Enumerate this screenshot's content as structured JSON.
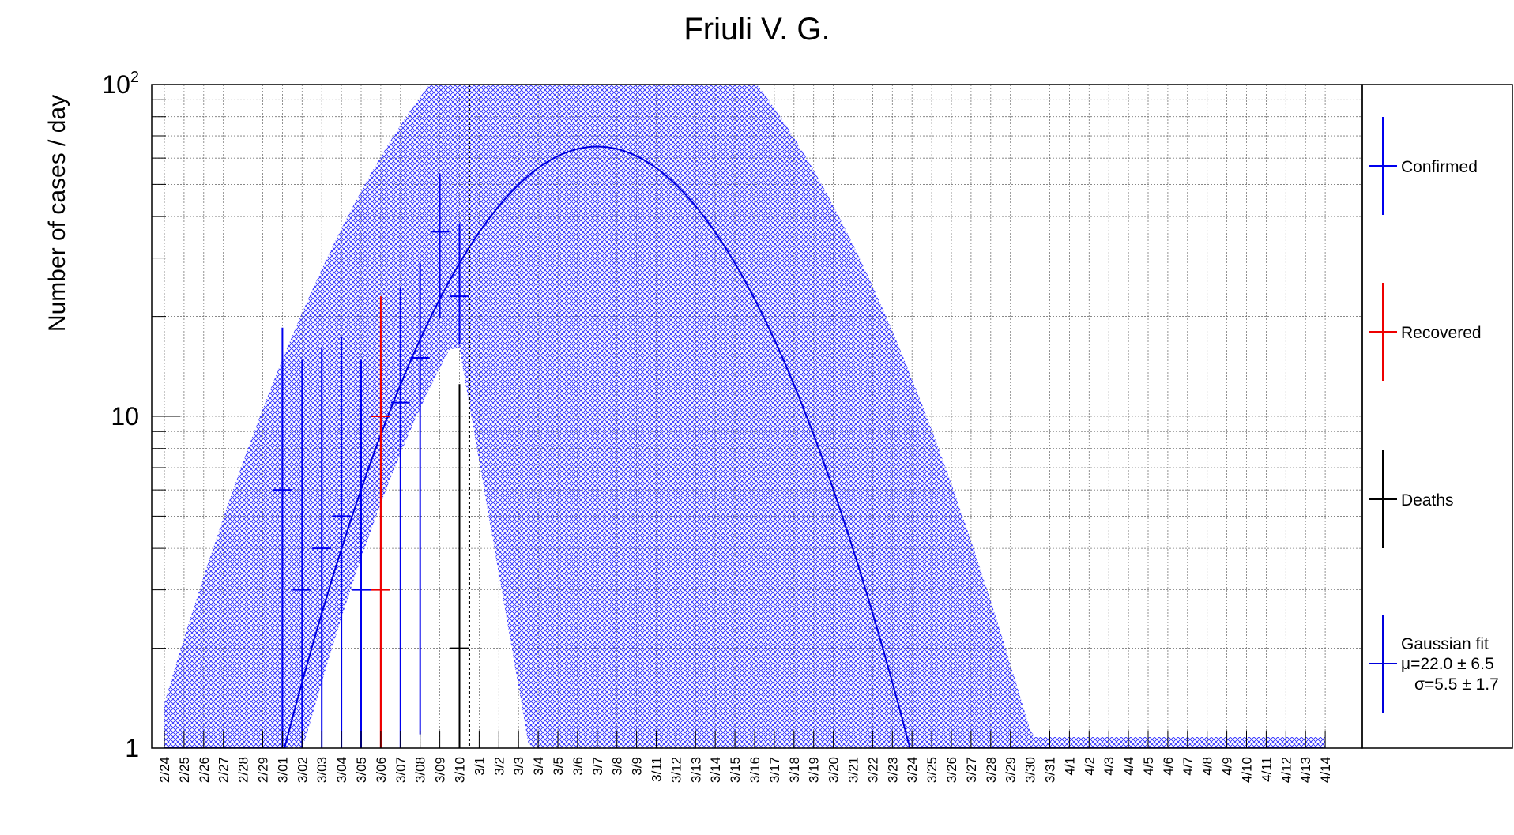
{
  "chart_data": {
    "type": "scatter",
    "title": "Friuli V. G.",
    "xlabel": "",
    "ylabel": "Number of cases / day",
    "yscale": "log",
    "ylim": [
      1,
      100
    ],
    "y_tick_labels": [
      {
        "value": 1,
        "base": "1",
        "exp": ""
      },
      {
        "value": 10,
        "base": "10",
        "exp": ""
      },
      {
        "value": 100,
        "base": "10",
        "exp": "2"
      }
    ],
    "grid": true,
    "categories": [
      "2/24",
      "2/25",
      "2/26",
      "2/27",
      "2/28",
      "2/29",
      "3/01",
      "3/02",
      "3/03",
      "3/04",
      "3/05",
      "3/06",
      "3/07",
      "3/08",
      "3/09",
      "3/10",
      "3/1",
      "3/2",
      "3/3",
      "3/4",
      "3/5",
      "3/6",
      "3/7",
      "3/8",
      "3/9",
      "3/11",
      "3/12",
      "3/13",
      "3/14",
      "3/15",
      "3/16",
      "3/17",
      "3/18",
      "3/19",
      "3/20",
      "3/21",
      "3/22",
      "3/23",
      "3/24",
      "3/25",
      "3/26",
      "3/27",
      "3/28",
      "3/29",
      "3/30",
      "3/31",
      "4/1",
      "4/2",
      "4/3",
      "4/4",
      "4/5",
      "4/6",
      "4/7",
      "4/8",
      "4/9",
      "4/10",
      "4/11",
      "4/12",
      "4/13",
      "4/14"
    ],
    "vertical_line_after_index": 15,
    "series": [
      {
        "name": "Confirmed",
        "color": "#0000ee",
        "points": [
          {
            "i": 6,
            "y": 6,
            "lo": 1,
            "hi": 18.5
          },
          {
            "i": 7,
            "y": 3,
            "lo": 1,
            "hi": 14.8
          },
          {
            "i": 8,
            "y": 4,
            "lo": 1,
            "hi": 16
          },
          {
            "i": 9,
            "y": 5,
            "lo": 1,
            "hi": 17.3
          },
          {
            "i": 10,
            "y": 3,
            "lo": 1,
            "hi": 14.8
          },
          {
            "i": 12,
            "y": 11,
            "lo": 1,
            "hi": 24.5
          },
          {
            "i": 13,
            "y": 15,
            "lo": 1.1,
            "hi": 29
          },
          {
            "i": 14,
            "y": 36,
            "lo": 19.8,
            "hi": 54
          },
          {
            "i": 15,
            "y": 23,
            "lo": 16.5,
            "hi": 38
          }
        ]
      },
      {
        "name": "Recovered",
        "color": "#ee0000",
        "points": [
          {
            "i": 11,
            "y": 3,
            "lo": 1,
            "hi": 14.8
          },
          {
            "i": 11,
            "y": 10,
            "lo": 1,
            "hi": 23
          }
        ]
      },
      {
        "name": "Deaths",
        "color": "#000000",
        "points": [
          {
            "i": 15,
            "y": 2,
            "lo": 1,
            "hi": 12.5
          }
        ]
      },
      {
        "name": "Gaussian fit",
        "color": "#0000dd",
        "mu_label": "μ=22.0 ± 6.5",
        "sigma_label": "σ=5.5 ± 1.7",
        "fit": {
          "mu": 22.0,
          "sigma": 5.5,
          "amplitude": 65
        }
      }
    ],
    "legend": {
      "placement": "right"
    }
  }
}
